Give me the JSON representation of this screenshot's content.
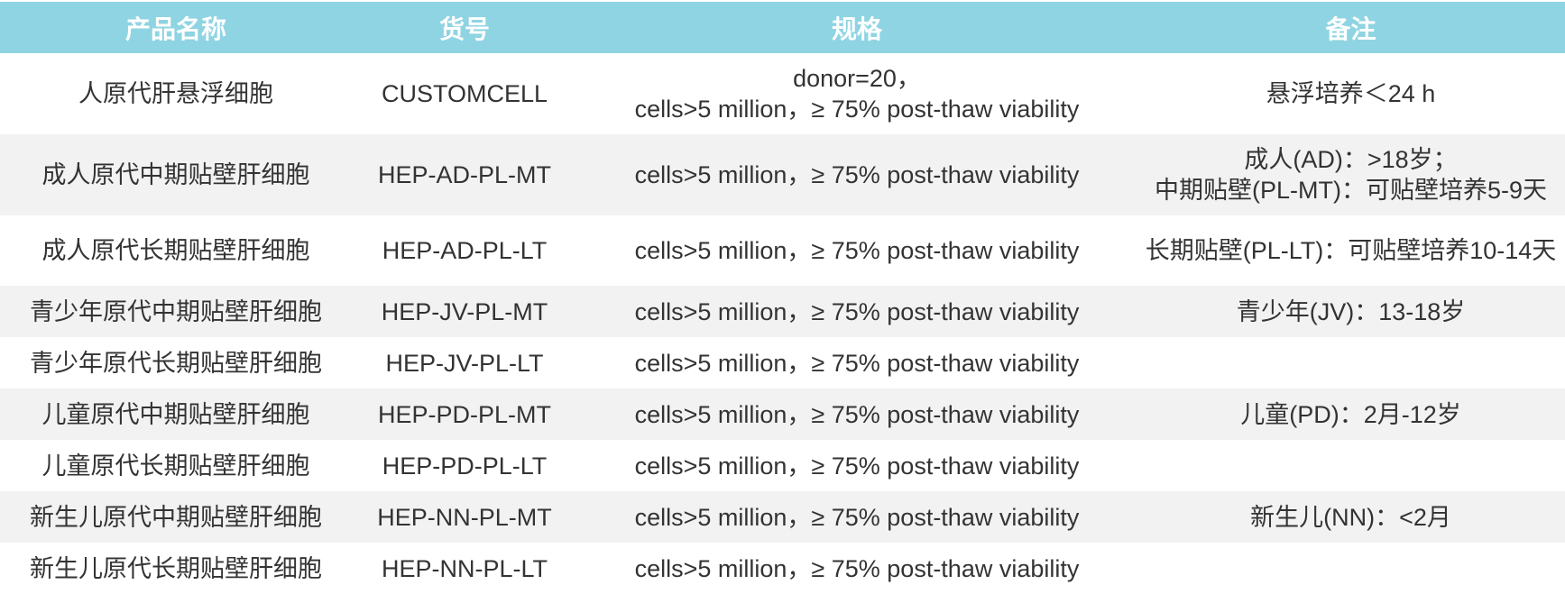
{
  "table": {
    "headers": [
      "产品名称",
      "货号",
      "规格",
      "备注"
    ],
    "rows": [
      {
        "name": "人原代肝悬浮细胞",
        "code": "CUSTOMCELL",
        "spec": [
          "donor=20，",
          "cells>5 million，≥ 75% post-thaw viability"
        ],
        "note": [
          "悬浮培养＜24 h"
        ]
      },
      {
        "name": "成人原代中期贴壁肝细胞",
        "code": "HEP-AD-PL-MT",
        "spec": [
          "cells>5 million，≥ 75% post-thaw viability"
        ],
        "note": [
          "成人(AD)：>18岁；",
          "中期贴壁(PL-MT)：可贴壁培养5-9天"
        ]
      },
      {
        "name": "成人原代长期贴壁肝细胞",
        "code": "HEP-AD-PL-LT",
        "spec": [
          "cells>5 million，≥ 75% post-thaw viability"
        ],
        "note": [
          "长期贴壁(PL-LT)：可贴壁培养10-14天"
        ]
      },
      {
        "name": "青少年原代中期贴壁肝细胞",
        "code": "HEP-JV-PL-MT",
        "spec": [
          "cells>5 million，≥ 75% post-thaw viability"
        ],
        "note": [
          "青少年(JV)：13-18岁"
        ]
      },
      {
        "name": "青少年原代长期贴壁肝细胞",
        "code": "HEP-JV-PL-LT",
        "spec": [
          "cells>5 million，≥ 75% post-thaw viability"
        ],
        "note": [
          ""
        ]
      },
      {
        "name": "儿童原代中期贴壁肝细胞",
        "code": "HEP-PD-PL-MT",
        "spec": [
          "cells>5 million，≥ 75% post-thaw viability"
        ],
        "note": [
          "儿童(PD)：2月-12岁"
        ]
      },
      {
        "name": "儿童原代长期贴壁肝细胞",
        "code": "HEP-PD-PL-LT",
        "spec": [
          "cells>5 million，≥ 75% post-thaw viability"
        ],
        "note": [
          ""
        ]
      },
      {
        "name": "新生儿原代中期贴壁肝细胞",
        "code": "HEP-NN-PL-MT",
        "spec": [
          "cells>5 million，≥ 75% post-thaw viability"
        ],
        "note": [
          "新生儿(NN)：<2月"
        ]
      },
      {
        "name": "新生儿原代长期贴壁肝细胞",
        "code": "HEP-NN-PL-LT",
        "spec": [
          "cells>5 million，≥ 75% post-thaw viability"
        ],
        "note": [
          ""
        ]
      }
    ]
  },
  "colors": {
    "header_bg": "#8fd4e2",
    "header_text": "#ffffff",
    "row_alt_bg": "#f2f2f2",
    "text": "#333333"
  }
}
